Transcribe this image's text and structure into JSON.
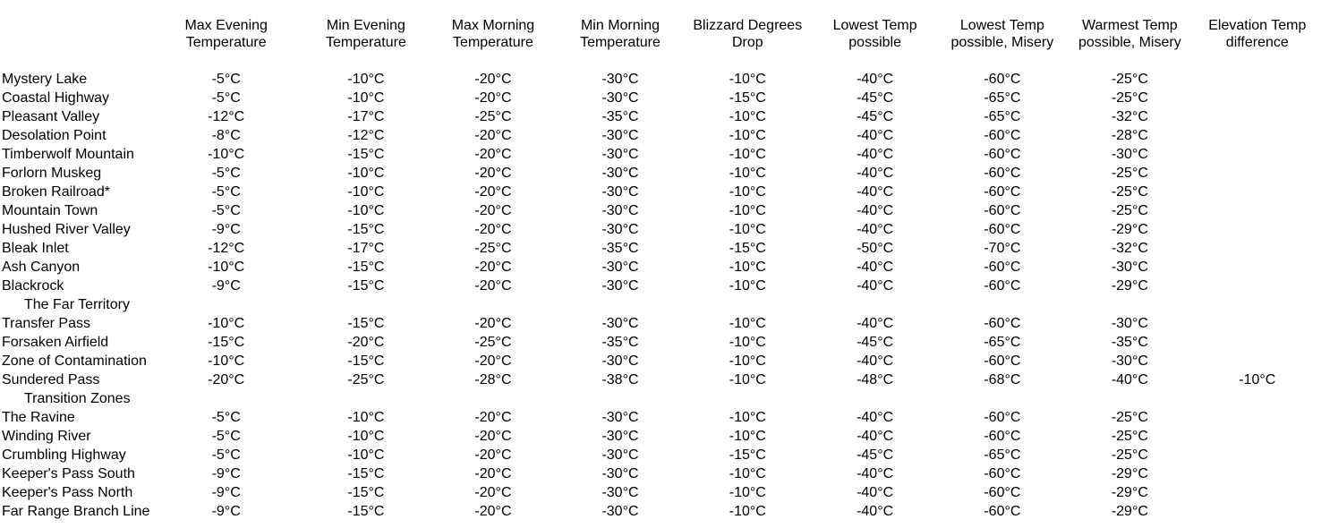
{
  "columns": [
    "",
    "Max Evening\nTemperature",
    "Min Evening\nTemperature",
    "Max Morning\nTemperature",
    "Min Morning\nTemperature",
    "Blizzard Degrees\nDrop",
    "Lowest Temp\npossible",
    "Lowest Temp\npossible, Misery",
    "Warmest Temp\npossible, Misery",
    "Elevation Temp\ndifference"
  ],
  "rows": [
    {
      "name": "Mystery Lake",
      "values": [
        "-5°C",
        "-10°C",
        "-20°C",
        "-30°C",
        "-10°C",
        "-40°C",
        "-60°C",
        "-25°C",
        ""
      ]
    },
    {
      "name": "Coastal Highway",
      "values": [
        "-5°C",
        "-10°C",
        "-20°C",
        "-30°C",
        "-15°C",
        "-45°C",
        "-65°C",
        "-25°C",
        ""
      ]
    },
    {
      "name": "Pleasant Valley",
      "values": [
        "-12°C",
        "-17°C",
        "-25°C",
        "-35°C",
        "-10°C",
        "-45°C",
        "-65°C",
        "-32°C",
        ""
      ]
    },
    {
      "name": "Desolation Point",
      "values": [
        "-8°C",
        "-12°C",
        "-20°C",
        "-30°C",
        "-10°C",
        "-40°C",
        "-60°C",
        "-28°C",
        ""
      ]
    },
    {
      "name": "Timberwolf Mountain",
      "values": [
        "-10°C",
        "-15°C",
        "-20°C",
        "-30°C",
        "-10°C",
        "-40°C",
        "-60°C",
        "-30°C",
        ""
      ]
    },
    {
      "name": "Forlorn Muskeg",
      "values": [
        "-5°C",
        "-10°C",
        "-20°C",
        "-30°C",
        "-10°C",
        "-40°C",
        "-60°C",
        "-25°C",
        ""
      ]
    },
    {
      "name": "Broken Railroad*",
      "values": [
        "-5°C",
        "-10°C",
        "-20°C",
        "-30°C",
        "-10°C",
        "-40°C",
        "-60°C",
        "-25°C",
        ""
      ]
    },
    {
      "name": "Mountain Town",
      "values": [
        "-5°C",
        "-10°C",
        "-20°C",
        "-30°C",
        "-10°C",
        "-40°C",
        "-60°C",
        "-25°C",
        ""
      ]
    },
    {
      "name": "Hushed River Valley",
      "values": [
        "-9°C",
        "-15°C",
        "-20°C",
        "-30°C",
        "-10°C",
        "-40°C",
        "-60°C",
        "-29°C",
        ""
      ]
    },
    {
      "name": "Bleak Inlet",
      "values": [
        "-12°C",
        "-17°C",
        "-25°C",
        "-35°C",
        "-15°C",
        "-50°C",
        "-70°C",
        "-32°C",
        ""
      ]
    },
    {
      "name": "Ash Canyon",
      "values": [
        "-10°C",
        "-15°C",
        "-20°C",
        "-30°C",
        "-10°C",
        "-40°C",
        "-60°C",
        "-30°C",
        ""
      ]
    },
    {
      "name": "Blackrock",
      "values": [
        "-9°C",
        "-15°C",
        "-20°C",
        "-30°C",
        "-10°C",
        "-40°C",
        "-60°C",
        "-29°C",
        ""
      ]
    },
    {
      "section": "The Far Territory"
    },
    {
      "name": "Transfer Pass",
      "values": [
        "-10°C",
        "-15°C",
        "-20°C",
        "-30°C",
        "-10°C",
        "-40°C",
        "-60°C",
        "-30°C",
        ""
      ]
    },
    {
      "name": "Forsaken Airfield",
      "values": [
        "-15°C",
        "-20°C",
        "-25°C",
        "-35°C",
        "-10°C",
        "-45°C",
        "-65°C",
        "-35°C",
        ""
      ]
    },
    {
      "name": "Zone of Contamination",
      "values": [
        "-10°C",
        "-15°C",
        "-20°C",
        "-30°C",
        "-10°C",
        "-40°C",
        "-60°C",
        "-30°C",
        ""
      ]
    },
    {
      "name": "Sundered Pass",
      "values": [
        "-20°C",
        "-25°C",
        "-28°C",
        "-38°C",
        "-10°C",
        "-48°C",
        "-68°C",
        "-40°C",
        "-10°C"
      ]
    },
    {
      "section": "Transition Zones"
    },
    {
      "name": "The Ravine",
      "values": [
        "-5°C",
        "-10°C",
        "-20°C",
        "-30°C",
        "-10°C",
        "-40°C",
        "-60°C",
        "-25°C",
        ""
      ]
    },
    {
      "name": "Winding River",
      "values": [
        "-5°C",
        "-10°C",
        "-20°C",
        "-30°C",
        "-10°C",
        "-40°C",
        "-60°C",
        "-25°C",
        ""
      ]
    },
    {
      "name": "Crumbling Highway",
      "values": [
        "-5°C",
        "-10°C",
        "-20°C",
        "-30°C",
        "-15°C",
        "-45°C",
        "-65°C",
        "-25°C",
        ""
      ]
    },
    {
      "name": "Keeper's Pass South",
      "values": [
        "-9°C",
        "-15°C",
        "-20°C",
        "-30°C",
        "-10°C",
        "-40°C",
        "-60°C",
        "-29°C",
        ""
      ]
    },
    {
      "name": "Keeper's Pass North",
      "values": [
        "-9°C",
        "-15°C",
        "-20°C",
        "-30°C",
        "-10°C",
        "-40°C",
        "-60°C",
        "-29°C",
        ""
      ]
    },
    {
      "name": "Far Range Branch Line",
      "values": [
        "-9°C",
        "-15°C",
        "-20°C",
        "-30°C",
        "-10°C",
        "-40°C",
        "-60°C",
        "-29°C",
        ""
      ]
    }
  ]
}
